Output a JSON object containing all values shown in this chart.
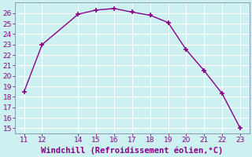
{
  "x": [
    11,
    12,
    14,
    15,
    16,
    17,
    18,
    19,
    20,
    21,
    22,
    23
  ],
  "y": [
    18.5,
    23.0,
    25.9,
    26.3,
    26.45,
    26.1,
    25.8,
    25.1,
    22.5,
    20.5,
    18.3,
    15.0
  ],
  "line_color": "#880088",
  "marker_color": "#880088",
  "bg_color": "#cdf0f0",
  "grid_color": "#ffffff",
  "xlabel": "Windchill (Refroidissement éolien,°C)",
  "xlabel_color": "#880088",
  "tick_color": "#880088",
  "spine_color": "#8888aa",
  "xlim": [
    10.5,
    23.5
  ],
  "ylim": [
    14.5,
    27.0
  ],
  "xticks": [
    11,
    12,
    14,
    15,
    16,
    17,
    18,
    19,
    20,
    21,
    22,
    23
  ],
  "yticks": [
    15,
    16,
    17,
    18,
    19,
    20,
    21,
    22,
    23,
    24,
    25,
    26
  ],
  "xlabel_fontsize": 7.5,
  "tick_fontsize": 6.5
}
